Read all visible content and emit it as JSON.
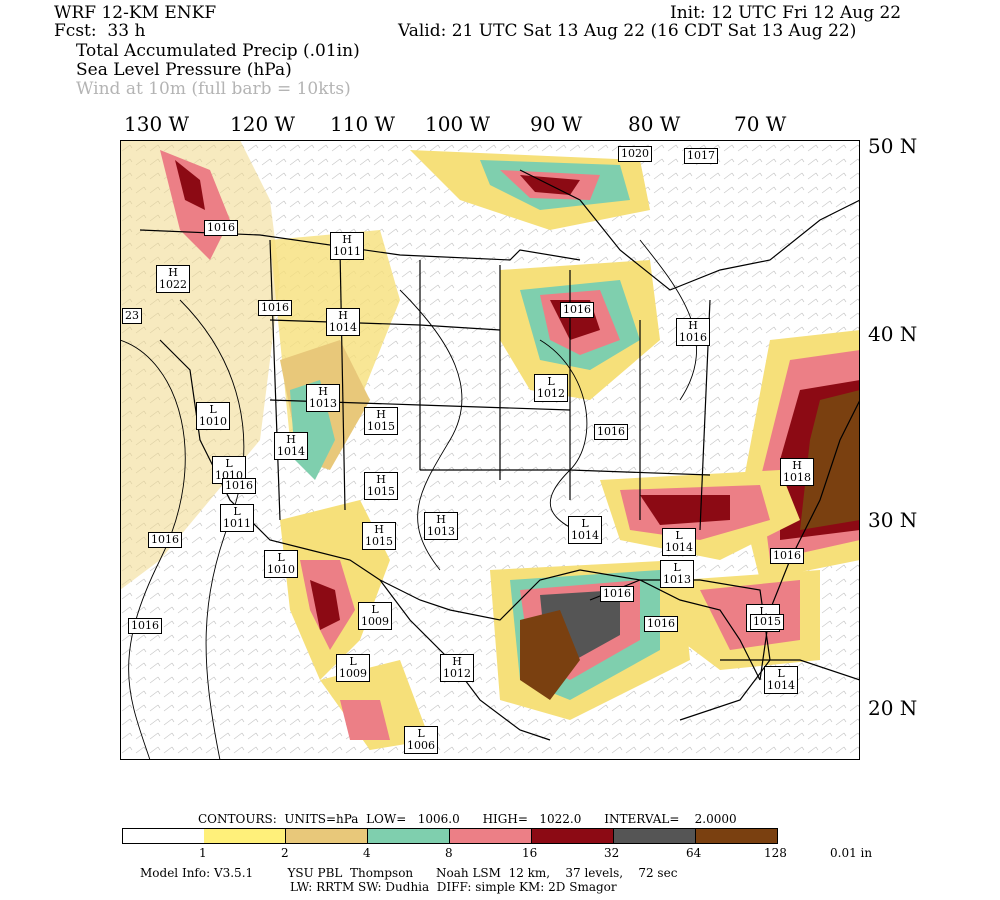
{
  "header": {
    "model": "WRF 12-KM ENKF",
    "fcst": "Fcst:  33 h",
    "init": "Init: 12 UTC Fri 12 Aug 22",
    "valid": "Valid: 21 UTC Sat 13 Aug 22 (16 CDT Sat 13 Aug 22)",
    "field1": "Total Accumulated Precip (.01in)",
    "field2": "Sea Level Pressure (hPa)",
    "field3": "Wind at 10m (full barb = 10kts)"
  },
  "axes": {
    "longitudes": [
      "130 W",
      "120 W",
      "110 W",
      "100 W",
      "90 W",
      "80 W",
      "70 W"
    ],
    "latitudes": [
      "50 N",
      "40 N",
      "30 N",
      "20 N"
    ]
  },
  "pressure_centers": [
    {
      "type": "H",
      "value": "1011"
    },
    {
      "type": "H",
      "value": "1022"
    },
    {
      "type": "H",
      "value": "1014"
    },
    {
      "type": "L",
      "value": "1010"
    },
    {
      "type": "H",
      "value": "1013"
    },
    {
      "type": "H",
      "value": "1015"
    },
    {
      "type": "H",
      "value": "1014"
    },
    {
      "type": "L",
      "value": "1010"
    },
    {
      "type": "H",
      "value": "1015"
    },
    {
      "type": "L",
      "value": "1011"
    },
    {
      "type": "H",
      "value": "1015"
    },
    {
      "type": "H",
      "value": "1013"
    },
    {
      "type": "L",
      "value": "1010"
    },
    {
      "type": "L",
      "value": "1009"
    },
    {
      "type": "L",
      "value": "1009"
    },
    {
      "type": "H",
      "value": "1012"
    },
    {
      "type": "L",
      "value": "1006"
    },
    {
      "type": "L",
      "value": "1012"
    },
    {
      "type": "L",
      "value": "1014"
    },
    {
      "type": "L",
      "value": "1014"
    },
    {
      "type": "L",
      "value": "1013"
    },
    {
      "type": "L",
      "value": "1015"
    },
    {
      "type": "L",
      "value": "1014"
    },
    {
      "type": "H",
      "value": "1016"
    },
    {
      "type": "H",
      "value": "1018"
    }
  ],
  "isobar_labels": [
    "1020",
    "1017",
    "1016",
    "1016",
    "1016",
    "1016",
    "1016",
    "1016",
    "1016",
    "1016",
    "1016",
    "1016",
    "1015",
    "23"
  ],
  "colorbar": {
    "contours_line": "CONTOURS:  UNITS=hPa  LOW=   1006.0      HIGH=   1022.0      INTERVAL=    2.0000",
    "colors": [
      "#ffffff",
      "#fff07a",
      "#e8c87a",
      "#7fcfae",
      "#ec7f86",
      "#8c0a14",
      "#555555",
      "#7a4010"
    ],
    "labels": [
      "1",
      "2",
      "4",
      "8",
      "16",
      "32",
      "64",
      "128",
      "0.01 in"
    ]
  },
  "footer": {
    "line1": "Model Info: V3.5.1         YSU PBL  Thompson      Noah LSM  12 km,    37 levels,    72 sec",
    "line2": "LW: RRTM SW: Dudhia  DIFF: simple KM: 2D Smagor"
  }
}
